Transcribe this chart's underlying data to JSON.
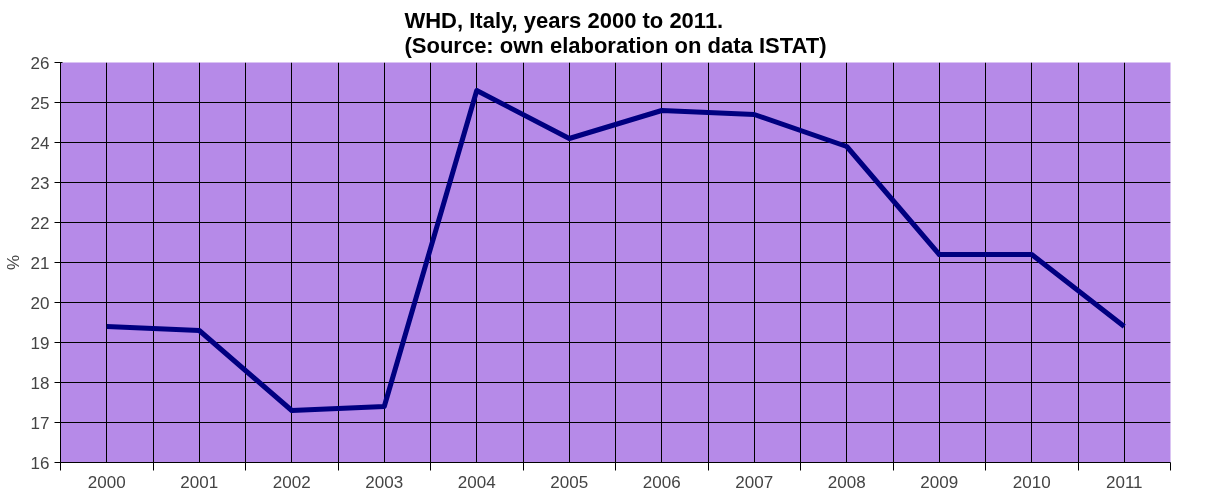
{
  "chart_data": {
    "type": "line",
    "title": "WHD, Italy, years 2000 to 2011.\n(Source: own elaboration on data ISTAT)",
    "ylabel": "%",
    "categories": [
      "2000",
      "2001",
      "2002",
      "2003",
      "2004",
      "2005",
      "2006",
      "2007",
      "2008",
      "2009",
      "2010",
      "2011"
    ],
    "series": [
      {
        "color": "#000080",
        "values": [
          19.4,
          19.3,
          17.3,
          17.4,
          25.3,
          24.1,
          24.8,
          24.7,
          23.9,
          21.2,
          21.2,
          19.4
        ]
      }
    ],
    "ylim": [
      16,
      26
    ],
    "yticks": [
      16,
      17,
      18,
      19,
      20,
      21,
      22,
      23,
      24,
      25,
      26
    ],
    "grid": true,
    "marker": "none",
    "line_style": "solid"
  }
}
